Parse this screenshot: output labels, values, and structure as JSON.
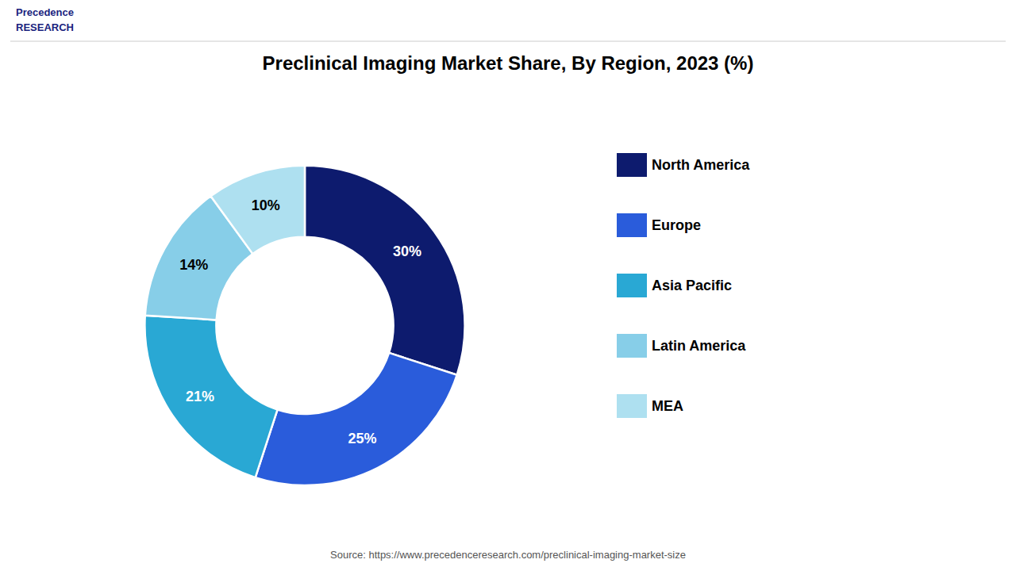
{
  "chart_data": {
    "type": "pie",
    "title": "Preclinical Imaging Market Share, By Region, 2023 (%)",
    "categories": [
      "North America",
      "Europe",
      "Asia Pacific",
      "Latin America",
      "MEA"
    ],
    "values": [
      30,
      25,
      21,
      14,
      10
    ],
    "value_labels": [
      "30%",
      "25%",
      "21%",
      "14%",
      "10%"
    ],
    "colors": [
      "#0d1b6e",
      "#2a5cdb",
      "#29a8d4",
      "#87cee8",
      "#aee0f0"
    ],
    "data_labels": true,
    "legend": "right",
    "annotations": [
      "Source: https://www.precedenceresearch.com/preclinical-imaging-market-size",
      "Precedence\nRESEARCH"
    ]
  }
}
